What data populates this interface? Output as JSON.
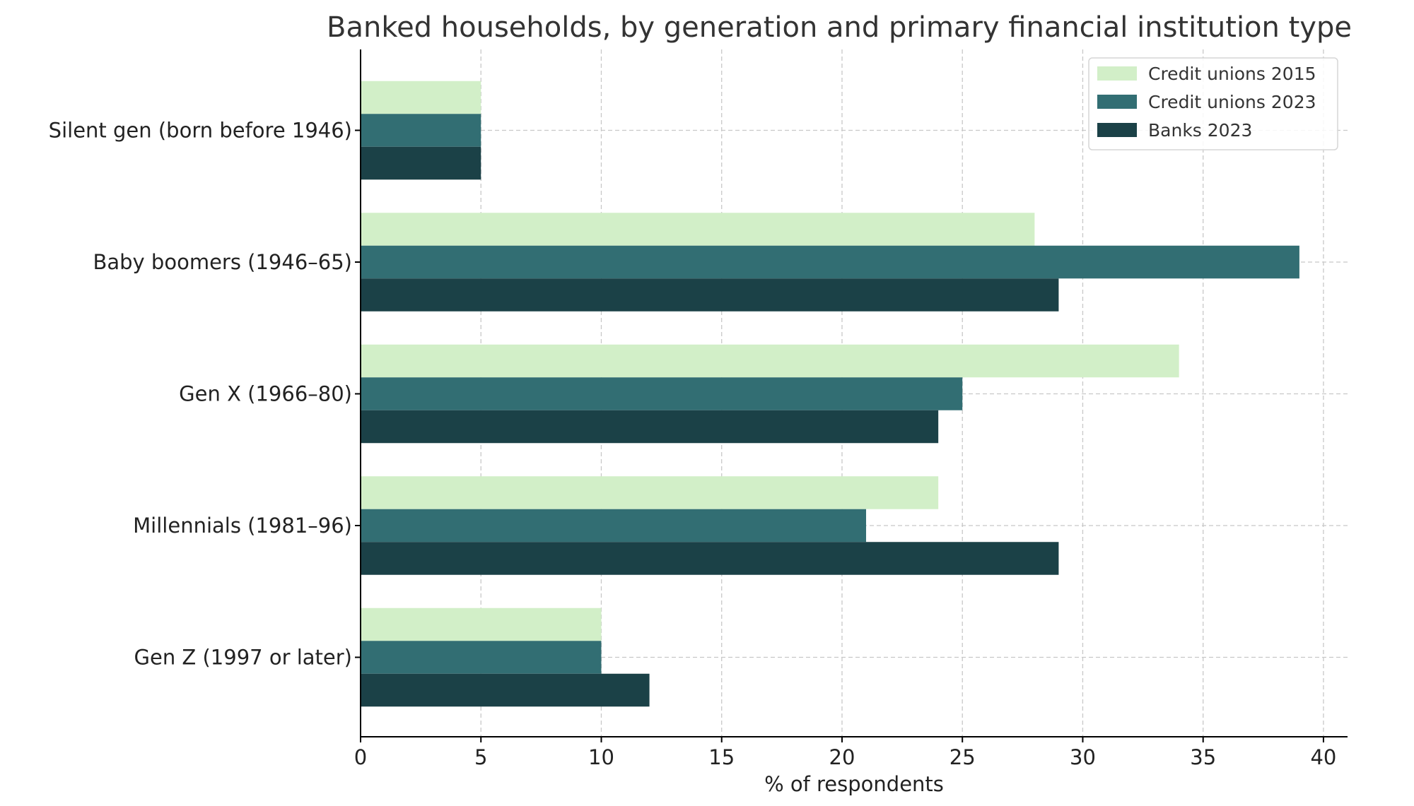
{
  "chart_data": {
    "type": "bar",
    "orientation": "horizontal",
    "title": "Banked households, by generation and primary financial institution type",
    "xlabel": "% of respondents",
    "ylabel": "",
    "xlim": [
      0,
      41
    ],
    "xticks": [
      0,
      5,
      10,
      15,
      20,
      25,
      30,
      35,
      40
    ],
    "grid": true,
    "legend_position": "top-right",
    "categories": [
      "Silent gen (born before 1946)",
      "Baby boomers (1946–65)",
      "Gen X (1966–80)",
      "Millennials (1981–96)",
      "Gen Z (1997 or later)"
    ],
    "series": [
      {
        "name": "Credit unions 2015",
        "color": "#d2efc8",
        "values": [
          5,
          28,
          34,
          24,
          10
        ]
      },
      {
        "name": "Credit unions 2023",
        "color": "#326e73",
        "values": [
          5,
          39,
          25,
          21,
          10
        ]
      },
      {
        "name": "Banks 2023",
        "color": "#1b4147",
        "values": [
          5,
          29,
          24,
          29,
          12
        ]
      }
    ]
  }
}
